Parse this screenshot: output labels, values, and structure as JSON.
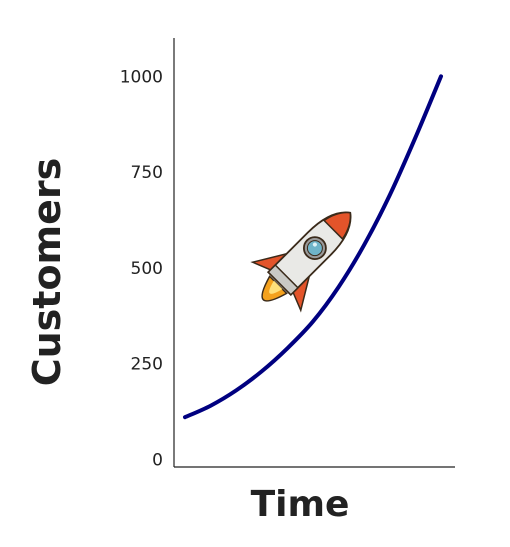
{
  "chart_data": {
    "type": "line",
    "title": "",
    "xlabel": "Time",
    "ylabel": "Customers",
    "x_ticks_shown": false,
    "ylim": [
      -20,
      1100
    ],
    "y_ticks": [
      0,
      250,
      500,
      750,
      1000
    ],
    "y_tick_labels": [
      "0",
      "250",
      "500",
      "750",
      "1000"
    ],
    "grid": false,
    "legend": "none",
    "series": [
      {
        "color": "#000080",
        "x": [
          0,
          0.1,
          0.2,
          0.3,
          0.4,
          0.5,
          0.6,
          0.7,
          0.8,
          0.9,
          1.0
        ],
        "values": [
          110,
          140,
          180,
          230,
          290,
          360,
          450,
          560,
          690,
          840,
          1000
        ]
      }
    ],
    "decoration": {
      "icon": "rocket-icon"
    }
  }
}
